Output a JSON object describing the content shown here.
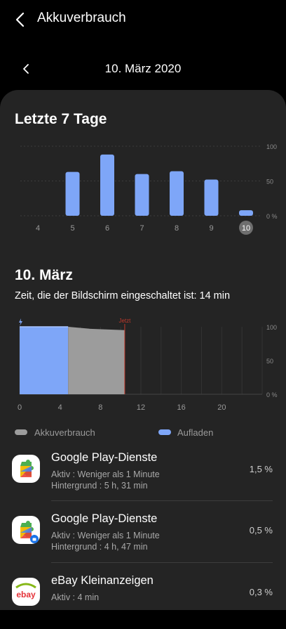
{
  "header": {
    "title": "Akkuverbrauch"
  },
  "date_nav": {
    "label": "10. März 2020"
  },
  "week": {
    "title": "Letzte 7 Tage",
    "chart_data": {
      "type": "bar",
      "categories": [
        "4",
        "5",
        "6",
        "7",
        "8",
        "9",
        "10"
      ],
      "values": [
        0,
        63,
        88,
        60,
        64,
        52,
        8
      ],
      "ylim": [
        0,
        100
      ],
      "yticks": [
        "100",
        "50",
        "0 %"
      ],
      "selected": "10",
      "bar_color": "#7ea6f8"
    }
  },
  "day": {
    "title": "10. März",
    "screen_time": "Zeit, die der Bildschirm eingeschaltet ist: 14 min",
    "chart_data": {
      "type": "area",
      "xlim": [
        0,
        24
      ],
      "ylim": [
        0,
        100
      ],
      "xticks": [
        "0",
        "4",
        "8",
        "12",
        "16",
        "20"
      ],
      "yticks": [
        "100",
        "50",
        "0 %"
      ],
      "now_label": "Jetzt",
      "now_hour": 10.4,
      "series": [
        {
          "name": "Aufladen",
          "x": [
            0,
            4.8
          ],
          "y": [
            100,
            100
          ],
          "color": "#7ea6f8"
        },
        {
          "name": "Akkuverbrauch",
          "x": [
            4.8,
            7,
            10.4
          ],
          "y": [
            100,
            97,
            95
          ],
          "color": "#9c9c9c"
        }
      ]
    }
  },
  "legend": {
    "usage": "Akkuverbrauch",
    "charging": "Aufladen",
    "usage_color": "#9c9c9c",
    "charging_color": "#7ea6f8"
  },
  "apps": [
    {
      "name": "Google Play-Dienste",
      "active": "Aktiv : Weniger als 1 Minute",
      "background": "Hintergrund : 5 h, 31 min",
      "percent": "1,5 %",
      "icon": "google-play-services-icon"
    },
    {
      "name": "Google Play-Dienste",
      "active": "Aktiv : Weniger als 1 Minute",
      "background": "Hintergrund : 4 h, 47 min",
      "percent": "0,5 %",
      "icon": "google-play-services-work-icon"
    },
    {
      "name": "eBay Kleinanzeigen",
      "active": "Aktiv : 4 min",
      "percent": "0,3 %",
      "icon": "ebay-kleinanzeigen-icon",
      "logo_text": "ebay"
    }
  ]
}
